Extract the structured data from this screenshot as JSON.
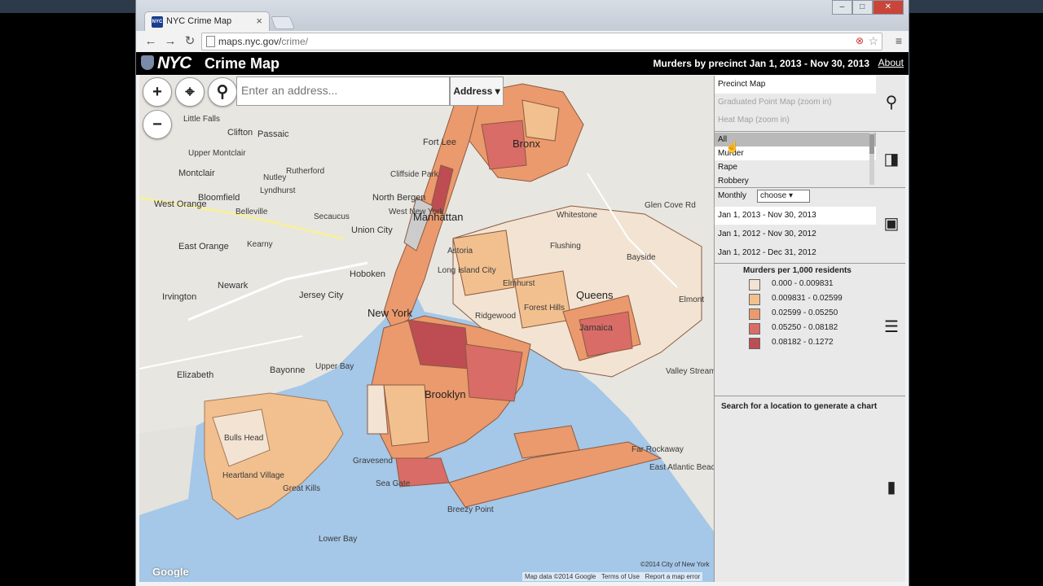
{
  "browser": {
    "tab_title": "NYC Crime Map",
    "favicon_text": "NYC gov",
    "tab_close": "×",
    "url_host": "maps.nyc.gov/",
    "url_path": "crime/",
    "back": "←",
    "forward": "→",
    "reload": "↻",
    "menu": "≡",
    "star": "☆",
    "window_minimize": "–",
    "window_restore": "□",
    "window_close": "✕"
  },
  "header": {
    "logo": "NYC",
    "title": "Crime Map",
    "subtitle": "Murders by precinct Jan 1, 2013 - Nov 30, 2013",
    "about": "About"
  },
  "map_controls": {
    "zoom_in": "+",
    "zoom_out": "−",
    "locate": "⌖",
    "search": "⚲",
    "address_placeholder": "Enter an address...",
    "address_type": "Address ▾"
  },
  "map_labels": [
    "Little Falls",
    "Clifton",
    "Passaic",
    "Upper Montclair",
    "Montclair",
    "Bloomfield",
    "West Orange",
    "East Orange",
    "Newark",
    "Irvington",
    "Kearny",
    "Belleville",
    "Nutley",
    "Lyndhurst",
    "Rutherford",
    "Secaucus",
    "Union City",
    "Hoboken",
    "Jersey City",
    "Bayonne",
    "Elizabeth",
    "Upper Bay",
    "Lower Bay",
    "Fort Lee",
    "Cliffside Park",
    "North Bergen",
    "West New York",
    "Manhattan",
    "New York",
    "Astoria",
    "Long Island City",
    "Elmhurst",
    "Flushing",
    "Queens",
    "Bayside",
    "Ridgewood",
    "Forest Hills",
    "Jamaica",
    "Brooklyn",
    "Bronx",
    "Gravesend",
    "Sea Gate",
    "Breezy Point",
    "Far Rockaway",
    "East Atlantic Beach",
    "Elmont",
    "Valley Stream",
    "Heartland Village",
    "Bulls Head",
    "Whitestone",
    "Glen Cove Rd",
    "Great Kills"
  ],
  "map_footer": {
    "copyright": "©2014 City of New York",
    "data": "Map data ©2014 Google",
    "terms": "Terms of Use",
    "report": "Report a map error",
    "google": "Google"
  },
  "panel": {
    "map_types": [
      {
        "label": "Precinct Map",
        "state": "selected"
      },
      {
        "label": "Graduated Point Map (zoom in)",
        "state": "disabled"
      },
      {
        "label": "Heat Map (zoom in)",
        "state": "disabled"
      }
    ],
    "categories": [
      {
        "label": "All",
        "state": "highlighted"
      },
      {
        "label": "Murder",
        "state": "selected"
      },
      {
        "label": "Rape",
        "state": "normal"
      },
      {
        "label": "Robbery",
        "state": "normal"
      }
    ],
    "period_label": "Monthly",
    "period_value": "choose ▾",
    "date_ranges": [
      {
        "label": "Jan 1, 2013 - Nov 30, 2013",
        "state": "selected"
      },
      {
        "label": "Jan 1, 2012 - Nov 30, 2012",
        "state": "normal"
      },
      {
        "label": "Jan 1, 2012 - Dec 31, 2012",
        "state": "normal"
      }
    ],
    "legend_title": "Murders per 1,000 residents",
    "legend": [
      {
        "range": "0.000 - 0.009831",
        "color": "#f3e3d2"
      },
      {
        "range": "0.009831 - 0.02599",
        "color": "#f2c08f"
      },
      {
        "range": "0.02599 - 0.05250",
        "color": "#eb9a6d"
      },
      {
        "range": "0.05250 - 0.08182",
        "color": "#d96c66"
      },
      {
        "range": "0.08182 - 0.1272",
        "color": "#bd4d52"
      }
    ],
    "chart_hint": "Search for a location to generate a chart",
    "icons": {
      "map_type": "map-pin-icon",
      "category": "tag-icon",
      "calendar": "calendar-icon",
      "legend": "list-icon",
      "chart": "bar-chart-icon"
    }
  },
  "colors": {
    "water": "#a5c7e8",
    "land": "#e8e6e1",
    "header_bg": "#000000",
    "panel_bg": "#e9e9e9"
  }
}
